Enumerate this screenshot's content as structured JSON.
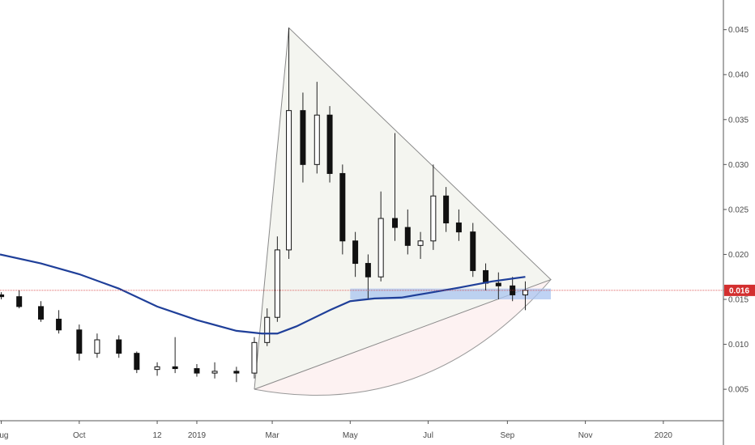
{
  "chart_data": {
    "type": "candlestick",
    "y_axis": {
      "ticks": [
        "0.045",
        "0.040",
        "0.035",
        "0.030",
        "0.025",
        "0.020",
        "0.015",
        "0.010",
        "0.005"
      ],
      "tick_values": [
        0.045,
        0.04,
        0.035,
        0.03,
        0.025,
        0.02,
        0.015,
        0.01,
        0.005
      ],
      "range": [
        0.0015,
        0.0483
      ]
    },
    "x_axis": {
      "ticks": [
        "Aug",
        "Oct",
        "12",
        "2019",
        "Mar",
        "May",
        "Jul",
        "Sep",
        "Nov",
        "2020"
      ],
      "tick_dates": [
        "2018-08-01",
        "2018-10-01",
        "2018-12-01",
        "2019-01-01",
        "2019-03-01",
        "2019-05-01",
        "2019-07-01",
        "2019-09-01",
        "2019-11-01",
        "2020-01-01"
      ],
      "range": [
        "2018-07-31",
        "2020-02-17"
      ]
    },
    "last_price": {
      "value": 0.016,
      "label": "0.016",
      "color": "#d32f2f"
    },
    "moving_average": {
      "color": "#1f3f99",
      "points": [
        [
          "2018-07-31",
          0.02
        ],
        [
          "2018-09-01",
          0.019
        ],
        [
          "2018-10-01",
          0.0178
        ],
        [
          "2018-11-01",
          0.0162
        ],
        [
          "2018-12-01",
          0.0142
        ],
        [
          "2019-01-01",
          0.0127
        ],
        [
          "2019-02-01",
          0.0115
        ],
        [
          "2019-02-21",
          0.0112
        ],
        [
          "2019-03-05",
          0.0112
        ],
        [
          "2019-03-20",
          0.012
        ],
        [
          "2019-04-15",
          0.0138
        ],
        [
          "2019-05-01",
          0.0148
        ],
        [
          "2019-05-20",
          0.0151
        ],
        [
          "2019-06-10",
          0.0152
        ],
        [
          "2019-07-01",
          0.0157
        ],
        [
          "2019-07-25",
          0.0163
        ],
        [
          "2019-08-20",
          0.017
        ],
        [
          "2019-09-15",
          0.0175
        ]
      ]
    },
    "support_zone": {
      "from": "2019-05-01",
      "to": "2019-10-05",
      "low": 0.015,
      "high": 0.0162,
      "color": "#aac4f0"
    },
    "triangle": [
      [
        "2019-02-15",
        0.005
      ],
      [
        "2019-03-14",
        0.0452
      ],
      [
        "2019-10-05",
        0.0172
      ]
    ],
    "candles": [
      [
        "2018-08-01",
        0.0155,
        0.0158,
        0.015,
        0.0153
      ],
      [
        "2018-08-15",
        0.0153,
        0.016,
        0.014,
        0.0142
      ],
      [
        "2018-09-01",
        0.0142,
        0.0148,
        0.0125,
        0.0128
      ],
      [
        "2018-09-15",
        0.0128,
        0.0138,
        0.0112,
        0.0116
      ],
      [
        "2018-10-01",
        0.0116,
        0.0122,
        0.0082,
        0.009
      ],
      [
        "2018-10-15",
        0.009,
        0.0112,
        0.0085,
        0.0105
      ],
      [
        "2018-11-01",
        0.0105,
        0.011,
        0.0085,
        0.009
      ],
      [
        "2018-11-15",
        0.009,
        0.0092,
        0.0068,
        0.0072
      ],
      [
        "2018-12-01",
        0.0072,
        0.008,
        0.0065,
        0.0075
      ],
      [
        "2018-12-15",
        0.0075,
        0.0108,
        0.0068,
        0.0073
      ],
      [
        "2019-01-01",
        0.0073,
        0.0078,
        0.0064,
        0.0068
      ],
      [
        "2019-01-15",
        0.0068,
        0.008,
        0.0062,
        0.007
      ],
      [
        "2019-02-01",
        0.007,
        0.0075,
        0.0058,
        0.0068
      ],
      [
        "2019-02-15",
        0.0068,
        0.0108,
        0.0062,
        0.0102
      ],
      [
        "2019-02-25",
        0.0102,
        0.014,
        0.0098,
        0.013
      ],
      [
        "2019-03-05",
        0.013,
        0.022,
        0.0125,
        0.0205
      ],
      [
        "2019-03-14",
        0.0205,
        0.0452,
        0.0195,
        0.036
      ],
      [
        "2019-03-25",
        0.036,
        0.038,
        0.028,
        0.03
      ],
      [
        "2019-04-05",
        0.03,
        0.0392,
        0.029,
        0.0355
      ],
      [
        "2019-04-15",
        0.0355,
        0.0365,
        0.028,
        0.029
      ],
      [
        "2019-04-25",
        0.029,
        0.03,
        0.02,
        0.0215
      ],
      [
        "2019-05-05",
        0.0215,
        0.0225,
        0.0175,
        0.019
      ],
      [
        "2019-05-15",
        0.019,
        0.02,
        0.015,
        0.0175
      ],
      [
        "2019-05-25",
        0.0175,
        0.027,
        0.017,
        0.024
      ],
      [
        "2019-06-05",
        0.024,
        0.0335,
        0.0215,
        0.023
      ],
      [
        "2019-06-15",
        0.023,
        0.025,
        0.02,
        0.021
      ],
      [
        "2019-06-25",
        0.021,
        0.0225,
        0.0195,
        0.0215
      ],
      [
        "2019-07-05",
        0.0215,
        0.03,
        0.0205,
        0.0265
      ],
      [
        "2019-07-15",
        0.0265,
        0.0275,
        0.0225,
        0.0235
      ],
      [
        "2019-07-25",
        0.0235,
        0.025,
        0.0215,
        0.0225
      ],
      [
        "2019-08-05",
        0.0225,
        0.0235,
        0.0175,
        0.0182
      ],
      [
        "2019-08-15",
        0.0182,
        0.019,
        0.016,
        0.0168
      ],
      [
        "2019-08-25",
        0.0168,
        0.018,
        0.015,
        0.0165
      ],
      [
        "2019-09-05",
        0.0165,
        0.0175,
        0.0148,
        0.0155
      ],
      [
        "2019-09-15",
        0.0155,
        0.017,
        0.0138,
        0.016
      ]
    ]
  }
}
